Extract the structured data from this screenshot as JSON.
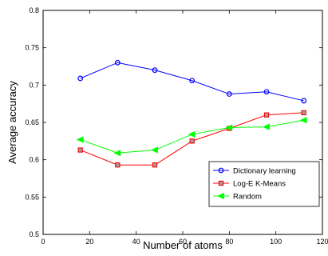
{
  "chart_data": {
    "type": "line",
    "title": "",
    "xlabel": "Number of atoms",
    "ylabel": "Average accuracy",
    "xlim": [
      0,
      120
    ],
    "ylim": [
      0.5,
      0.8
    ],
    "xticks": [
      0,
      20,
      40,
      60,
      80,
      100,
      120
    ],
    "yticks": [
      0.5,
      0.55,
      0.6,
      0.65,
      0.7,
      0.75,
      0.8
    ],
    "x": [
      16,
      32,
      48,
      64,
      80,
      96,
      112
    ],
    "grid": false,
    "legend_position": "lower-right",
    "series": [
      {
        "name": "Dictionary learning",
        "values": [
          0.709,
          0.73,
          0.72,
          0.706,
          0.688,
          0.691,
          0.679
        ],
        "color": "#0000ff",
        "marker": "circle"
      },
      {
        "name": "Log-E K-Means",
        "values": [
          0.613,
          0.593,
          0.593,
          0.625,
          0.642,
          0.66,
          0.663
        ],
        "color": "#ff0000",
        "marker": "square"
      },
      {
        "name": "Random",
        "values": [
          0.627,
          0.609,
          0.613,
          0.634,
          0.643,
          0.644,
          0.653
        ],
        "color": "#00ff00",
        "marker": "triangle-left"
      }
    ]
  }
}
